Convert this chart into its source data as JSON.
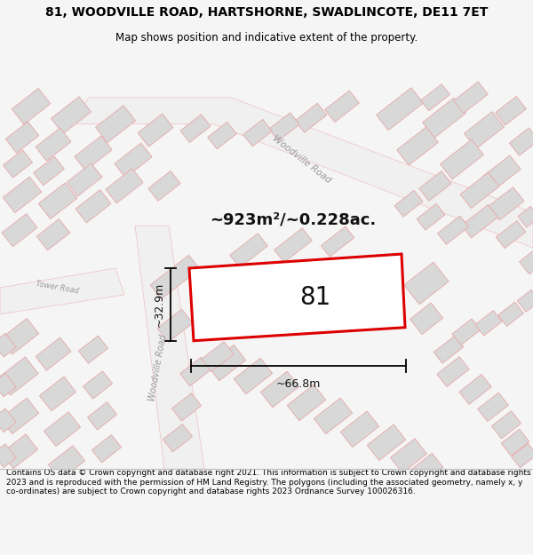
{
  "title": "81, WOODVILLE ROAD, HARTSHORNE, SWADLINCOTE, DE11 7ET",
  "subtitle": "Map shows position and indicative extent of the property.",
  "footer": "Contains OS data © Crown copyright and database right 2021. This information is subject to Crown copyright and database rights 2023 and is reproduced with the permission of HM Land Registry. The polygons (including the associated geometry, namely x, y co-ordinates) are subject to Crown copyright and database rights 2023 Ordnance Survey 100026316.",
  "area_label": "~923m²/~0.228ac.",
  "width_label": "~66.8m",
  "height_label": "~32.9m",
  "plot_number": "81",
  "bg_color": "#f5f5f5",
  "map_bg": "#ffffff",
  "building_fill": "#d8d8d8",
  "building_edge": "#e8a8a8",
  "road_fill": "#f0f0f0",
  "road_edge": "#f0c0c0",
  "highlight_stroke": "#dd0000",
  "title_fontsize": 10,
  "subtitle_fontsize": 8.5,
  "footer_fontsize": 6.5,
  "area_fontsize": 13,
  "dim_fontsize": 9,
  "plot_label_fontsize": 20,
  "road_label_fontsize": 7.5,
  "road_label_color": "#999999"
}
